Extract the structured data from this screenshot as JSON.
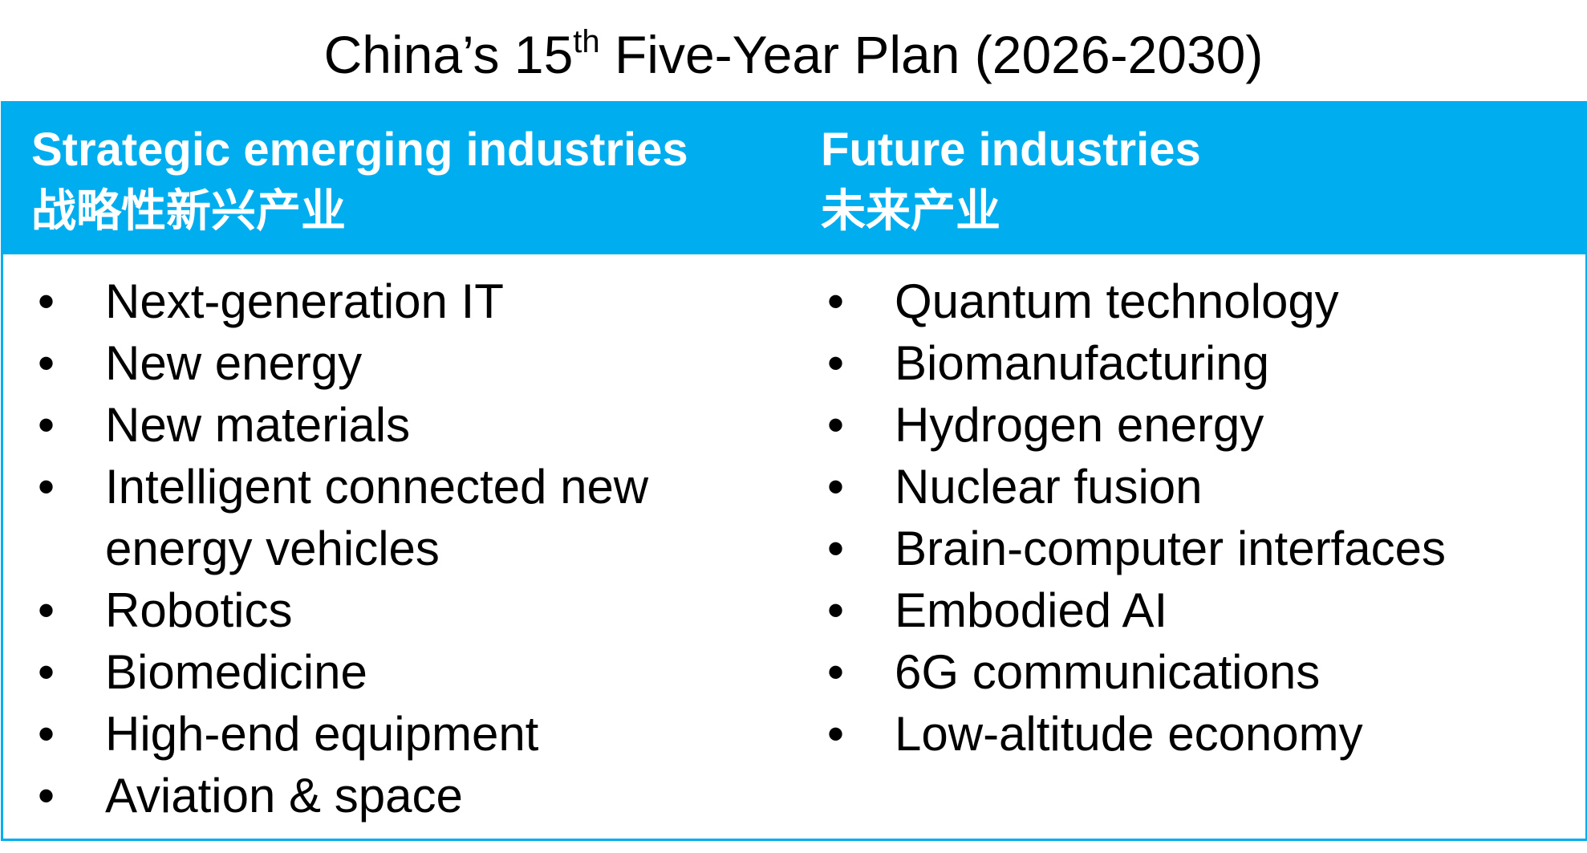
{
  "title": {
    "prefix": "China’s 15",
    "superscript": "th",
    "suffix": " Five-Year Plan (2026-2030)"
  },
  "columns": [
    {
      "heading_en": "Strategic emerging industries",
      "heading_zh": "战略性新兴产业",
      "items": [
        "Next-generation IT",
        "New energy",
        "New materials",
        "Intelligent connected new energy vehicles",
        "Robotics",
        "Biomedicine",
        "High-end equipment",
        "Aviation & space"
      ]
    },
    {
      "heading_en": "Future industries",
      "heading_zh": "未来产业",
      "items": [
        "Quantum technology",
        "Biomanufacturing",
        "Hydrogen energy",
        "Nuclear fusion",
        "Brain-computer interfaces",
        "Embodied AI",
        "6G communications",
        "Low-altitude economy"
      ]
    }
  ]
}
